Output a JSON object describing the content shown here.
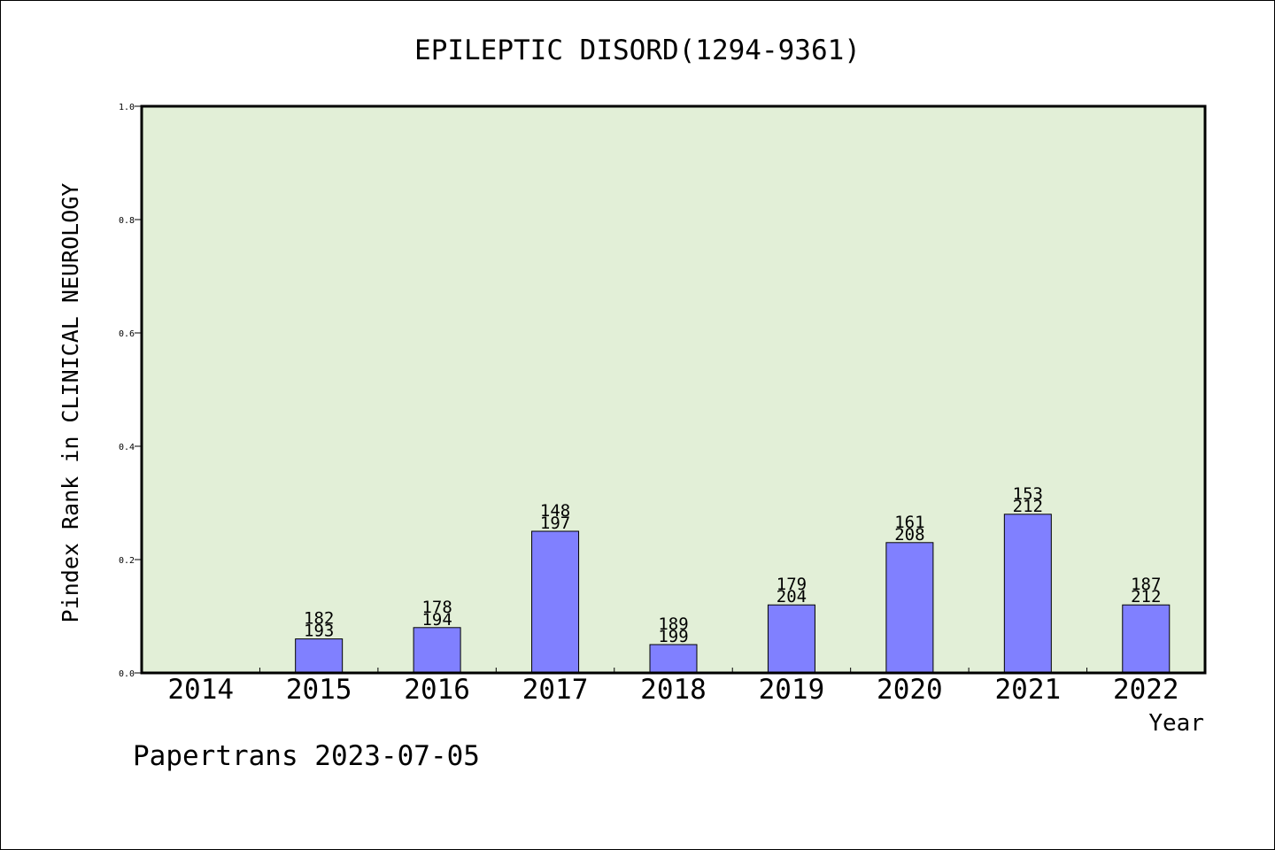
{
  "colors": {
    "plot_background": "#e2efd7",
    "bar_fill": "#8080ff",
    "bar_stroke": "#000000",
    "axis": "#000000"
  },
  "footer": {
    "credit": "Papertrans 2023-07-05"
  },
  "chart_data": {
    "type": "bar",
    "title": "EPILEPTIC DISORD(1294-9361)",
    "xlabel": "Year",
    "ylabel": "Pindex Rank in CLINICAL NEUROLOGY",
    "ylim": [
      0,
      1.0
    ],
    "yticks": [
      "0.0",
      "0.2",
      "0.4",
      "0.6",
      "0.8",
      "1.0"
    ],
    "grid": false,
    "categories": [
      "2014",
      "2015",
      "2016",
      "2017",
      "2018",
      "2019",
      "2020",
      "2021",
      "2022"
    ],
    "values": [
      0,
      0.06,
      0.08,
      0.25,
      0.05,
      0.12,
      0.23,
      0.28,
      0.12
    ],
    "annotations": [
      null,
      [
        "182",
        "193"
      ],
      [
        "178",
        "194"
      ],
      [
        "148",
        "197"
      ],
      [
        "189",
        "199"
      ],
      [
        "179",
        "204"
      ],
      [
        "161",
        "208"
      ],
      [
        "153",
        "212"
      ],
      [
        "187",
        "212"
      ]
    ]
  }
}
